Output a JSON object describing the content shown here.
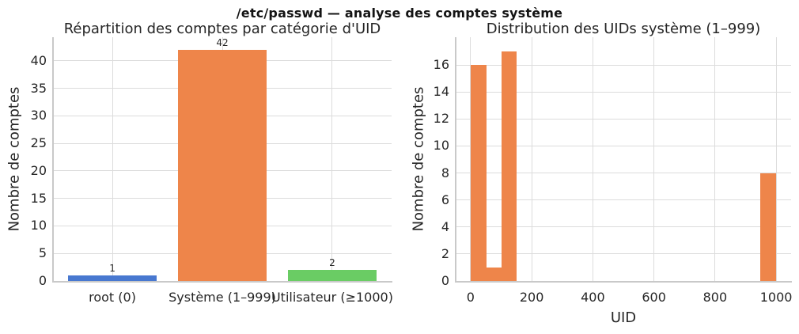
{
  "figure": {
    "suptitle": "/etc/passwd — analyse des comptes système",
    "background_color": "#ffffff",
    "grid_color": "#dcdcdc",
    "spine_color": "#c9c9c9",
    "text_color": "#262626"
  },
  "chart_data": [
    {
      "type": "bar",
      "title": "Répartition des comptes par catégorie d'UID",
      "xlabel": "",
      "ylabel": "Nombre de comptes",
      "categories": [
        "root (0)",
        "Système (1–999)",
        "Utilisateur (≥1000)"
      ],
      "values": [
        1,
        42,
        2
      ],
      "value_labels": [
        "1",
        "42",
        "2"
      ],
      "bar_colors": [
        "#4878D0",
        "#EE854A",
        "#6ACC64"
      ],
      "yticks": [
        0,
        5,
        10,
        15,
        20,
        25,
        30,
        35,
        40
      ],
      "ylim": [
        0,
        44.3
      ],
      "grid": "on",
      "legend": "none"
    },
    {
      "type": "histogram",
      "title": "Distribution des UIDs système (1–999)",
      "xlabel": "UID",
      "ylabel": "Nombre de comptes",
      "bar_color": "#EE854A",
      "bin_start": 1,
      "bin_end": 999,
      "bin_count": 20,
      "counts": [
        16,
        1,
        17,
        0,
        0,
        0,
        0,
        0,
        0,
        0,
        0,
        0,
        0,
        0,
        0,
        0,
        0,
        0,
        0,
        8
      ],
      "xticks": [
        0,
        200,
        400,
        600,
        800,
        1000
      ],
      "yticks": [
        0,
        2,
        4,
        6,
        8,
        10,
        12,
        14,
        16
      ],
      "xlim": [
        -48.9,
        1048.9
      ],
      "ylim": [
        0,
        18.06
      ],
      "grid": "on",
      "legend": "none"
    }
  ]
}
